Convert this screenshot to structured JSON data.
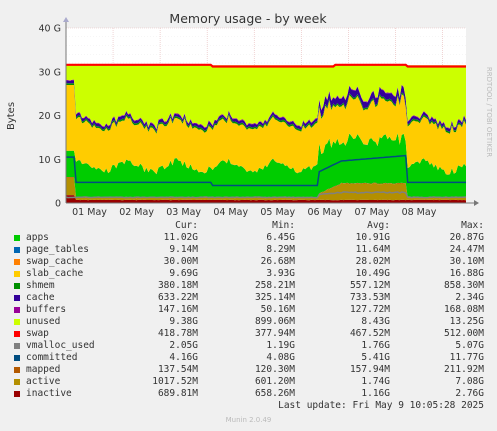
{
  "chart_data": {
    "type": "area",
    "title": "Memory usage - by week",
    "ylabel": "Bytes",
    "side_label": "RRDTOOL / TOBI OETIKER",
    "ylim": [
      0,
      40
    ],
    "yticks": [
      "0",
      "10 G",
      "20 G",
      "30 G",
      "40 G"
    ],
    "xticks": [
      "01 May",
      "02 May",
      "03 May",
      "04 May",
      "05 May",
      "06 May",
      "07 May",
      "08 May"
    ],
    "grid": true,
    "series": [
      {
        "name": "apps",
        "color": "#00cc00",
        "cur": "11.02G",
        "min": "6.45G",
        "avg": "10.91G",
        "max": "20.87G"
      },
      {
        "name": "page_tables",
        "color": "#0066b3",
        "cur": "9.14M",
        "min": "8.29M",
        "avg": "11.64M",
        "max": "24.47M"
      },
      {
        "name": "swap_cache",
        "color": "#ff8000",
        "cur": "30.00M",
        "min": "26.68M",
        "avg": "28.02M",
        "max": "30.10M"
      },
      {
        "name": "slab_cache",
        "color": "#ffcc00",
        "cur": "9.69G",
        "min": "3.93G",
        "avg": "10.49G",
        "max": "16.88G"
      },
      {
        "name": "shmem",
        "color": "#008f00",
        "cur": "380.18M",
        "min": "258.21M",
        "avg": "557.12M",
        "max": "858.30M"
      },
      {
        "name": "cache",
        "color": "#330099",
        "cur": "633.22M",
        "min": "325.14M",
        "avg": "733.53M",
        "max": "2.34G"
      },
      {
        "name": "buffers",
        "color": "#990099",
        "cur": "147.16M",
        "min": "50.16M",
        "avg": "127.72M",
        "max": "168.08M"
      },
      {
        "name": "unused",
        "color": "#ccff00",
        "cur": "9.38G",
        "min": "899.06M",
        "avg": "8.43G",
        "max": "13.25G"
      },
      {
        "name": "swap",
        "color": "#ff0000",
        "cur": "418.78M",
        "min": "377.94M",
        "avg": "467.52M",
        "max": "512.00M"
      },
      {
        "name": "vmalloc_used",
        "color": "#808080",
        "cur": "2.05G",
        "min": "1.19G",
        "avg": "1.76G",
        "max": "5.07G"
      },
      {
        "name": "committed",
        "color": "#004d80",
        "cur": "4.16G",
        "min": "4.08G",
        "avg": "5.41G",
        "max": "11.77G"
      },
      {
        "name": "mapped",
        "color": "#b35900",
        "cur": "137.54M",
        "min": "120.30M",
        "avg": "157.94M",
        "max": "211.92M"
      },
      {
        "name": "active",
        "color": "#b38f00",
        "cur": "1017.52M",
        "min": "601.20M",
        "avg": "1.74G",
        "max": "7.08G"
      },
      {
        "name": "inactive",
        "color": "#990000",
        "cur": "689.81M",
        "min": "658.26M",
        "avg": "1.16G",
        "max": "2.76G"
      }
    ]
  },
  "legend_headers": {
    "cur": "Cur:",
    "min": "Min:",
    "avg": "Avg:",
    "max": "Max:"
  },
  "footer": {
    "last_update": "Last update: Fri May  9 10:05:28 2025",
    "munin": "Munin 2.0.49"
  }
}
